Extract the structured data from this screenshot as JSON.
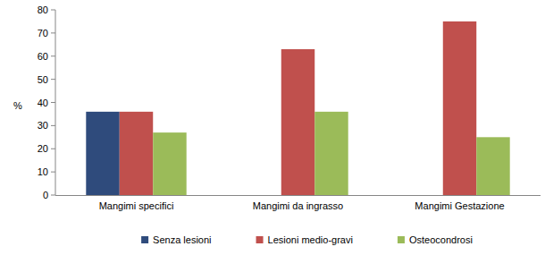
{
  "chart_data": {
    "type": "bar",
    "y_label": "%",
    "categories": [
      "Mangimi specifici",
      "Mangimi da ingrasso",
      "Mangimi Gestazione"
    ],
    "series": [
      {
        "name": "Senza lesioni",
        "color": "#2f4b7c",
        "values": [
          36,
          0,
          0
        ]
      },
      {
        "name": "Lesioni medio-gravi",
        "color": "#c0504d",
        "values": [
          36,
          63,
          75
        ]
      },
      {
        "name": "Osteocondrosi",
        "color": "#9bbb59",
        "values": [
          27,
          36,
          25
        ]
      }
    ],
    "ylim": [
      0,
      80
    ],
    "yticks": [
      0,
      10,
      20,
      30,
      40,
      50,
      60,
      70,
      80
    ],
    "grid": false,
    "legend": "bottom"
  }
}
